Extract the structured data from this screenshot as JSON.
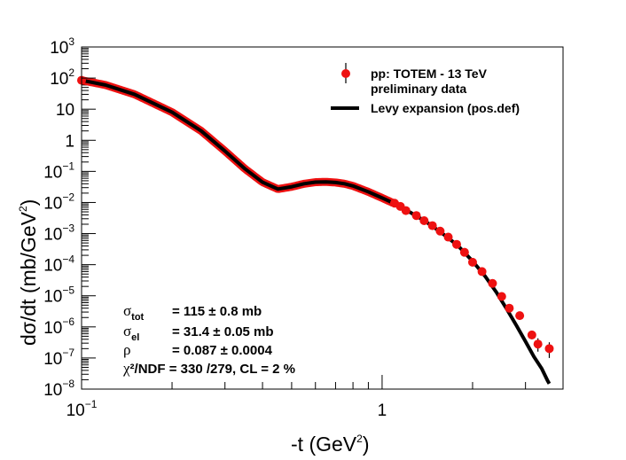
{
  "chart_data": {
    "type": "scatter",
    "xlabel": "-t (GeV",
    "xlabel_sup": "2",
    "xlabel_end": ")",
    "ylabel": "dσ/dt (mb/GeV",
    "ylabel_sup": "2",
    "ylabel_end": ")",
    "xscale": "log",
    "yscale": "log",
    "xlim": [
      0.1,
      4.0
    ],
    "ylim": [
      1e-08,
      1000
    ],
    "x_ticks": [
      {
        "value": 0.1,
        "base": "10",
        "exp": "−1"
      },
      {
        "value": 1,
        "base": "1",
        "exp": ""
      }
    ],
    "y_ticks": [
      {
        "value": 1000,
        "base": "10",
        "exp": "3"
      },
      {
        "value": 100,
        "base": "10",
        "exp": "2"
      },
      {
        "value": 10,
        "base": "10",
        "exp": ""
      },
      {
        "value": 1,
        "base": "1",
        "exp": ""
      },
      {
        "value": 0.1,
        "base": "10",
        "exp": "−1"
      },
      {
        "value": 0.01,
        "base": "10",
        "exp": "−2"
      },
      {
        "value": 0.001,
        "base": "10",
        "exp": "−3"
      },
      {
        "value": 0.0001,
        "base": "10",
        "exp": "−4"
      },
      {
        "value": 1e-05,
        "base": "10",
        "exp": "−5"
      },
      {
        "value": 1e-06,
        "base": "10",
        "exp": "−6"
      },
      {
        "value": 1e-07,
        "base": "10",
        "exp": "−7"
      },
      {
        "value": 1e-08,
        "base": "10",
        "exp": "−8"
      }
    ],
    "series": [
      {
        "name": "pp: TOTEM - 13 TeV",
        "name_line2": "preliminary data",
        "kind": "points",
        "color": "#ee1111",
        "points": [
          {
            "x": 0.1,
            "y": 85
          },
          {
            "x": 1.1,
            "y": 0.0095
          },
          {
            "x": 1.15,
            "y": 0.0075
          },
          {
            "x": 1.2,
            "y": 0.0055
          },
          {
            "x": 1.3,
            "y": 0.0038
          },
          {
            "x": 1.38,
            "y": 0.0026
          },
          {
            "x": 1.47,
            "y": 0.0018
          },
          {
            "x": 1.56,
            "y": 0.0012
          },
          {
            "x": 1.66,
            "y": 0.00077
          },
          {
            "x": 1.77,
            "y": 0.00045
          },
          {
            "x": 1.88,
            "y": 0.00025
          },
          {
            "x": 2.0,
            "y": 0.00012
          },
          {
            "x": 2.15,
            "y": 6e-05
          },
          {
            "x": 2.33,
            "y": 2.5e-05
          },
          {
            "x": 2.5,
            "y": 9.5e-06
          },
          {
            "x": 2.65,
            "y": 4e-06
          },
          {
            "x": 2.87,
            "y": 2.3e-06
          },
          {
            "x": 3.15,
            "y": 5.5e-07,
            "err_lo": 1.5e-07,
            "err_hi": 1.8e-07
          },
          {
            "x": 3.3,
            "y": 2.8e-07,
            "err_lo": 1.2e-07,
            "err_hi": 1.5e-07
          },
          {
            "x": 3.6,
            "y": 2e-07,
            "err_lo": 1e-07,
            "err_hi": 1.2e-07
          }
        ]
      },
      {
        "name": "Levy expansion (pos.def)",
        "kind": "line",
        "color": "#000000",
        "points": [
          [
            0.1,
            85
          ],
          [
            0.12,
            60
          ],
          [
            0.15,
            30
          ],
          [
            0.2,
            8
          ],
          [
            0.25,
            2
          ],
          [
            0.3,
            0.45
          ],
          [
            0.35,
            0.12
          ],
          [
            0.4,
            0.045
          ],
          [
            0.45,
            0.027
          ],
          [
            0.5,
            0.032
          ],
          [
            0.55,
            0.04
          ],
          [
            0.6,
            0.045
          ],
          [
            0.65,
            0.046
          ],
          [
            0.7,
            0.044
          ],
          [
            0.75,
            0.04
          ],
          [
            0.8,
            0.034
          ],
          [
            0.9,
            0.022
          ],
          [
            1.0,
            0.014
          ],
          [
            1.1,
            0.0092
          ],
          [
            1.2,
            0.0058
          ],
          [
            1.3,
            0.0037
          ],
          [
            1.4,
            0.0024
          ],
          [
            1.5,
            0.0015
          ],
          [
            1.6,
            0.00095
          ],
          [
            1.7,
            0.0006
          ],
          [
            1.8,
            0.00038
          ],
          [
            2.0,
            0.00013
          ],
          [
            2.2,
            4.3e-05
          ],
          [
            2.4,
            1.3e-05
          ],
          [
            2.6,
            3.7e-06
          ],
          [
            2.8,
            1.1e-06
          ],
          [
            3.0,
            3.4e-07
          ],
          [
            3.2,
            1.1e-07
          ],
          [
            3.4,
            4.5e-08
          ],
          [
            3.55,
            1.9e-08
          ],
          [
            3.6,
            1.5e-08
          ]
        ]
      }
    ]
  },
  "fit_results": [
    {
      "symbol": "σ",
      "sub": "tot",
      "text": "= 115 ± 0.8 mb"
    },
    {
      "symbol": "σ",
      "sub": "el",
      "text": "= 31.4 ± 0.05 mb"
    },
    {
      "symbol": "ρ",
      "sub": "",
      "text": "= 0.087 ± 0.0004"
    },
    {
      "symbol": "χ",
      "sub": "",
      "text": "²/NDF = 330 /279,  CL = 2 %"
    }
  ]
}
